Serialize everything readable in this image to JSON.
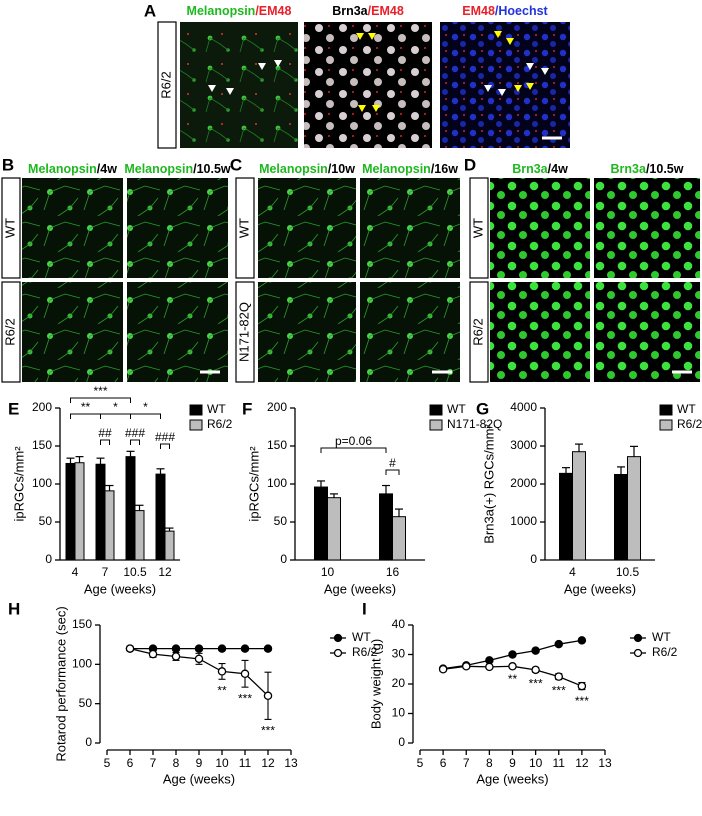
{
  "image_panels": [
    {
      "label": "A",
      "column_titles": [
        [
          "Melanopsin",
          "/EM48"
        ],
        [
          "Brn3a",
          "/EM48"
        ],
        [
          "EM48",
          "/Hoechst"
        ]
      ],
      "title_colors": [
        [
          "#1fb81f",
          "#e8202a"
        ],
        [
          "#000000",
          "#e8202a"
        ],
        [
          "#e8202a",
          "#2233dd"
        ]
      ],
      "row_labels": [
        "R6/2"
      ]
    },
    {
      "label": "B",
      "column_titles": [
        [
          "Melanopsin",
          "/4w"
        ],
        [
          "Melanopsin",
          "/10.5w"
        ]
      ],
      "title_colors": [
        [
          "#1fb81f",
          "#000000"
        ],
        [
          "#1fb81f",
          "#000000"
        ]
      ],
      "row_labels": [
        "WT",
        "R6/2"
      ]
    },
    {
      "label": "C",
      "column_titles": [
        [
          "Melanopsin",
          "/10w"
        ],
        [
          "Melanopsin",
          "/16w"
        ]
      ],
      "title_colors": [
        [
          "#1fb81f",
          "#000000"
        ],
        [
          "#1fb81f",
          "#000000"
        ]
      ],
      "row_labels": [
        "WT",
        "N171-82Q"
      ]
    },
    {
      "label": "D",
      "column_titles": [
        [
          "Brn3a",
          "/4w"
        ],
        [
          "Brn3a",
          "/10.5w"
        ]
      ],
      "title_colors": [
        [
          "#1fb81f",
          "#000000"
        ],
        [
          "#1fb81f",
          "#000000"
        ]
      ],
      "row_labels": [
        "WT",
        "R6/2"
      ]
    }
  ],
  "chart_data": [
    {
      "label": "E",
      "type": "bar",
      "ylabel": "ipRGCs/mm²",
      "xlabel": "Age (weeks)",
      "categories": [
        "4",
        "7",
        "10.5",
        "12"
      ],
      "ylim": [
        0,
        200
      ],
      "yticks": [
        0,
        50,
        100,
        150,
        200
      ],
      "series": [
        {
          "name": "WT",
          "color": "#000000",
          "values": [
            127,
            126,
            136,
            113
          ],
          "errors": [
            7,
            8,
            7,
            7
          ]
        },
        {
          "name": "R6/2",
          "color": "#bdbdbd",
          "values": [
            128,
            91,
            65,
            38
          ],
          "errors": [
            8,
            7,
            7,
            4
          ]
        }
      ],
      "annotations": [
        "***",
        "**",
        "*",
        "*",
        "##",
        "###",
        "###"
      ],
      "legend": "upper right"
    },
    {
      "label": "F",
      "type": "bar",
      "ylabel": "ipRGCs/mm²",
      "xlabel": "Age (weeks)",
      "categories": [
        "10",
        "16"
      ],
      "ylim": [
        0,
        200
      ],
      "yticks": [
        0,
        50,
        100,
        150,
        200
      ],
      "series": [
        {
          "name": "WT",
          "color": "#000000",
          "values": [
            96,
            87
          ],
          "errors": [
            8,
            11
          ]
        },
        {
          "name": "N171-82Q",
          "color": "#bdbdbd",
          "values": [
            82,
            57
          ],
          "errors": [
            5,
            10
          ]
        }
      ],
      "annotations": [
        "p=0.06",
        "#"
      ],
      "legend": "upper right"
    },
    {
      "label": "G",
      "type": "bar",
      "ylabel": "Brn3a(+) RGCs/mm²",
      "xlabel": "Age (weeks)",
      "categories": [
        "4",
        "10.5"
      ],
      "ylim": [
        0,
        4000
      ],
      "yticks": [
        0,
        1000,
        2000,
        3000,
        4000
      ],
      "series": [
        {
          "name": "WT",
          "color": "#000000",
          "values": [
            2280,
            2250
          ],
          "errors": [
            150,
            200
          ]
        },
        {
          "name": "R6/2",
          "color": "#bdbdbd",
          "values": [
            2850,
            2720
          ],
          "errors": [
            200,
            270
          ]
        }
      ],
      "annotations": [],
      "legend": "upper right"
    },
    {
      "label": "H",
      "type": "line",
      "ylabel": "Rotarod performance (sec)",
      "xlabel": "Age (weeks)",
      "x": [
        6,
        7,
        8,
        9,
        10,
        11,
        12
      ],
      "xlim": [
        5,
        13
      ],
      "xticks": [
        5,
        6,
        7,
        8,
        9,
        10,
        11,
        12,
        13
      ],
      "ylim": [
        0,
        150
      ],
      "yticks": [
        0,
        50,
        100,
        150
      ],
      "series": [
        {
          "name": "WT",
          "color": "#000000",
          "marker": "filled",
          "values": [
            120,
            120,
            120,
            120,
            120,
            120,
            120
          ]
        },
        {
          "name": "R6/2",
          "color": "#000000",
          "marker": "open",
          "values": [
            120,
            113,
            110,
            107,
            91,
            88,
            60
          ],
          "errors": [
            3,
            4,
            5,
            7,
            10,
            17,
            30
          ]
        }
      ],
      "annotations": [
        "**",
        "***",
        "***"
      ],
      "legend": "right"
    },
    {
      "label": "I",
      "type": "line",
      "ylabel": "Body weight (g)",
      "xlabel": "Age (weeks)",
      "x": [
        6,
        7,
        8,
        9,
        10,
        11,
        12
      ],
      "xlim": [
        5,
        13
      ],
      "xticks": [
        5,
        6,
        7,
        8,
        9,
        10,
        11,
        12,
        13
      ],
      "ylim": [
        0,
        40
      ],
      "yticks": [
        0,
        10,
        20,
        30,
        40
      ],
      "series": [
        {
          "name": "WT",
          "color": "#000000",
          "marker": "filled",
          "values": [
            25.2,
            26.3,
            28,
            30,
            31.3,
            33.5,
            34.8
          ]
        },
        {
          "name": "R6/2",
          "color": "#000000",
          "marker": "open",
          "values": [
            25,
            26,
            25.8,
            26,
            24.8,
            22.5,
            19.3
          ],
          "errors": [
            0.5,
            0.5,
            0.5,
            0.5,
            0.8,
            1,
            1.2
          ]
        }
      ],
      "annotations": [
        "**",
        "***",
        "***",
        "***"
      ],
      "legend": "right"
    }
  ]
}
